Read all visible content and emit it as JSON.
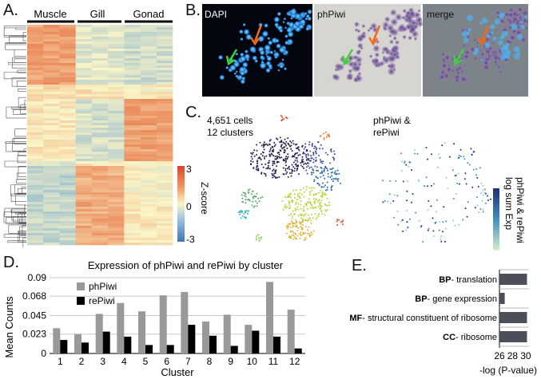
{
  "panels": {
    "a": {
      "label": "A.",
      "groups": [
        "Muscle",
        "Gill",
        "Gonad"
      ],
      "colorbar": {
        "title": "Z-score",
        "ticks": [
          "3",
          "0",
          "-3"
        ]
      }
    },
    "b": {
      "label": "B.",
      "image_labels": [
        "DAPI",
        "phPiwi",
        "merge"
      ]
    },
    "c": {
      "label": "C.",
      "left_caption": [
        "4,651 cells",
        "12 clusters"
      ],
      "right_caption": [
        "phPiwi &",
        "rePiwi"
      ],
      "colorbar_title": [
        "log sum Exp",
        "phPiwi & rePiwi"
      ]
    },
    "d": {
      "label": "D."
    },
    "e": {
      "label": "E."
    }
  },
  "colors": {
    "phPiwi": "#999999",
    "rePiwi": "#000000",
    "heat_high": "#e8794a",
    "heat_low": "#6fa6d2",
    "go_bar": "#4a4f5a",
    "umap_dark": "#2a1a4e",
    "umap_green": "#b8d43a",
    "umap_orange": "#e89a3a"
  },
  "chart_data": [
    {
      "type": "bar",
      "title": "Expression of phPiwi and rePiwi by cluster",
      "xlabel": "Cluster",
      "ylabel": "Mean Counts",
      "categories": [
        "1",
        "2",
        "3",
        "4",
        "5",
        "6",
        "7",
        "8",
        "9",
        "10",
        "11",
        "12"
      ],
      "yticks": [
        "0",
        "0.023",
        "0.045",
        "0.068",
        "0.09"
      ],
      "ylim": [
        0,
        0.09
      ],
      "legend": "top-left",
      "series": [
        {
          "name": "phPiwi",
          "values": [
            0.03,
            0.023,
            0.047,
            0.06,
            0.05,
            0.069,
            0.073,
            0.038,
            0.046,
            0.034,
            0.085,
            0.052
          ]
        },
        {
          "name": "rePiwi",
          "values": [
            0.016,
            0.013,
            0.026,
            0.02,
            0.01,
            0.01,
            0.034,
            0.021,
            0.009,
            0.027,
            0.02,
            0.006
          ]
        }
      ]
    },
    {
      "type": "bar",
      "orientation": "horizontal",
      "xlabel": "-log (P-value)",
      "xticks": [
        "26",
        "28",
        "30"
      ],
      "xlim": [
        26,
        30.5
      ],
      "terms": [
        {
          "prefix": "BP",
          "text": "- translation",
          "value": 30.2
        },
        {
          "prefix": "BP",
          "text": "- gene expression",
          "value": 26.8
        },
        {
          "prefix": "MF",
          "text": "- structural constituent of ribosome",
          "value": 30.2
        },
        {
          "prefix": "CC",
          "text": "- ribosome",
          "value": 30.2
        }
      ]
    }
  ]
}
